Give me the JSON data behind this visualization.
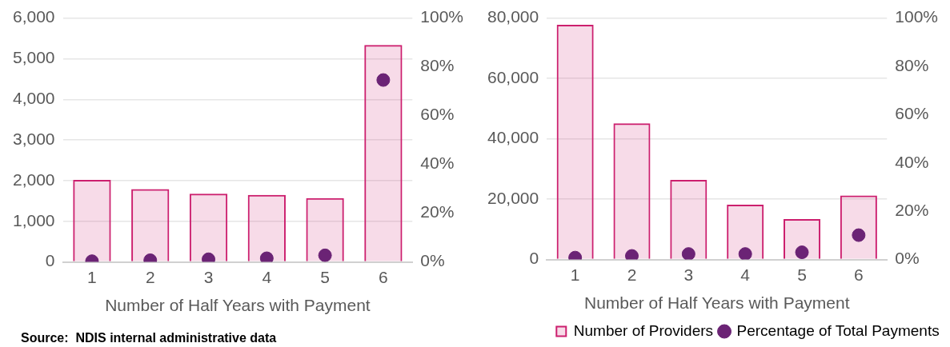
{
  "chart_data": [
    {
      "type": "bar",
      "xlabel": "Number of Half Years with Payment",
      "categories": [
        "1",
        "2",
        "3",
        "4",
        "5",
        "6"
      ],
      "series": [
        {
          "color": "#cc1f6e",
          "values": [
            2020,
            1790,
            1680,
            1650,
            1570,
            5340
          ]
        },
        {
          "type": "scatter",
          "axis": "y2",
          "color": "#6b2375",
          "x": [
            "1",
            "2",
            "3",
            "4",
            "5",
            "6"
          ],
          "values": [
            0.3,
            0.7,
            1.1,
            1.5,
            2.7,
            74.6
          ]
        }
      ],
      "ylim": [
        0,
        6000
      ],
      "yticks": [
        {
          "value": 0,
          "label": "0"
        },
        {
          "value": 1000,
          "label": "1,000"
        },
        {
          "value": 2000,
          "label": "2,000"
        },
        {
          "value": 3000,
          "label": "3,000"
        },
        {
          "value": 4000,
          "label": "4,000"
        },
        {
          "value": 5000,
          "label": "5,000"
        },
        {
          "value": 6000,
          "label": "6,000"
        }
      ],
      "y2lim": [
        0,
        100
      ],
      "y2ticks": [
        {
          "value": 0,
          "label": "0%"
        },
        {
          "value": 20,
          "label": "20%"
        },
        {
          "value": 40,
          "label": "40%"
        },
        {
          "value": 60,
          "label": "60%"
        },
        {
          "value": 80,
          "label": "80%"
        },
        {
          "value": 100,
          "label": "100%"
        }
      ],
      "grid": "y",
      "legend": false,
      "marker": "circle",
      "annotations": [
        "Source:  NDIS internal administrative data"
      ]
    },
    {
      "type": "bar",
      "xlabel": "Number of Half Years with Payment",
      "categories": [
        "1",
        "2",
        "3",
        "4",
        "5",
        "6"
      ],
      "series": [
        {
          "name": "Number of Providers",
          "color": "#cc1f6e",
          "values": [
            77800,
            45100,
            26400,
            18200,
            13400,
            21200
          ]
        },
        {
          "type": "scatter",
          "name": "Percentage of Total Payments",
          "axis": "y2",
          "color": "#6b2375",
          "x": [
            "1",
            "2",
            "3",
            "4",
            "5",
            "6"
          ],
          "values": [
            0.8,
            1.5,
            2.3,
            2.3,
            3.0,
            10.1
          ]
        }
      ],
      "ylim": [
        0,
        80000
      ],
      "yticks": [
        {
          "value": 0,
          "label": "0"
        },
        {
          "value": 20000,
          "label": "20,000"
        },
        {
          "value": 40000,
          "label": "40,000"
        },
        {
          "value": 60000,
          "label": "60,000"
        },
        {
          "value": 80000,
          "label": "80,000"
        }
      ],
      "y2lim": [
        0,
        100
      ],
      "y2ticks": [
        {
          "value": 0,
          "label": "0%"
        },
        {
          "value": 20,
          "label": "20%"
        },
        {
          "value": 40,
          "label": "40%"
        },
        {
          "value": 60,
          "label": "60%"
        },
        {
          "value": 80,
          "label": "80%"
        },
        {
          "value": 100,
          "label": "100%"
        }
      ],
      "grid": "y",
      "legend": "bottom",
      "marker": "circle"
    }
  ]
}
